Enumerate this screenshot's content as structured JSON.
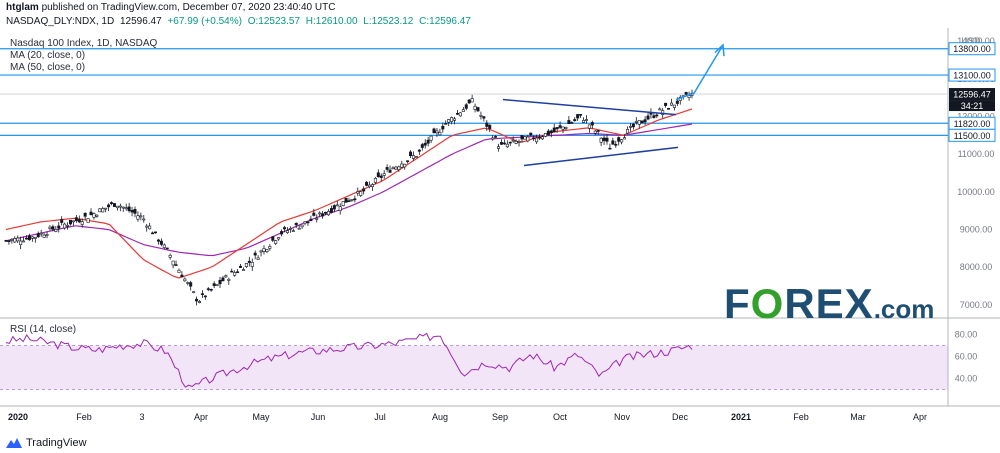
{
  "header": {
    "publisher": "htglam",
    "published_text": "published on TradingView.com, December 07, 2020 23:40:40 UTC",
    "symbol": "NASDAQ_DLY:NDX, 1D",
    "price": "12596.47",
    "change": "+67.99 (+0.54%)",
    "o": "O:12523.57",
    "h": "H:12610.00",
    "l": "L:12523.12",
    "c": "C:12596.47"
  },
  "legend": {
    "title": "Nasdaq 100 Index, 1D, NASDAQ",
    "ma20": "MA (20, close, 0)",
    "ma50": "MA (50, close, 0)",
    "rsi": "RSI (14, close)"
  },
  "brand": {
    "tradingview": "TradingView"
  },
  "watermark": {
    "word": "FOREX",
    "suffix": ".com",
    "o_letter": "O"
  },
  "colors": {
    "candle": "#131722",
    "ma20": "#e53935",
    "ma50": "#9c27b0",
    "hline": "#2196f3",
    "trend": "#1e3fa0",
    "rsi": "#9c27b0",
    "rsi_fill": "#f3e5f8",
    "forex_blue": "#1e4f73",
    "forex_green": "#33a02c"
  },
  "chart_data": [
    {
      "type": "candlestick",
      "title": "Nasdaq 100 Index, 1D, NASDAQ",
      "currency": "USD",
      "x_ticks": [
        "2020",
        "Feb",
        "3",
        "Apr",
        "May",
        "Jun",
        "Jul",
        "Aug",
        "Sep",
        "Oct",
        "Nov",
        "Dec",
        "2021",
        "Feb",
        "Mar",
        "Apr"
      ],
      "y_ticks": [
        7000,
        8000,
        9000,
        10000,
        11000,
        12000,
        13000,
        14000
      ],
      "ylim": [
        6650,
        14350
      ],
      "horizontal_levels": [
        13800.0,
        13100.0,
        11820.0,
        11500.0
      ],
      "last_price_label": "12596.47",
      "countdown_label": "34:21",
      "series": [
        {
          "name": "MA (20, close, 0)",
          "values": [
            9000,
            9200,
            9300,
            9150,
            8200,
            7700,
            8000,
            8600,
            9200,
            9500,
            9900,
            10300,
            10900,
            11500,
            11700,
            11300,
            11600,
            11700,
            11500,
            11900,
            12200
          ]
        },
        {
          "name": "MA (50, close, 0)",
          "values": [
            8700,
            8900,
            9100,
            9000,
            8600,
            8400,
            8300,
            8500,
            8900,
            9300,
            9600,
            10000,
            10500,
            11000,
            11400,
            11450,
            11500,
            11550,
            11500,
            11650,
            11800
          ]
        }
      ],
      "close_path": [
        8700,
        8800,
        9100,
        9350,
        9700,
        9300,
        8300,
        7100,
        7700,
        8200,
        8900,
        9200,
        9600,
        10000,
        10600,
        11000,
        11800,
        12400,
        11200,
        11400,
        11600,
        12000,
        11200,
        11800,
        12200,
        12596
      ]
    },
    {
      "type": "line",
      "title": "RSI (14, close)",
      "y_ticks": [
        40,
        60,
        80
      ],
      "band": [
        30,
        70
      ],
      "values": [
        74,
        76,
        72,
        68,
        66,
        70,
        72,
        65,
        30,
        40,
        48,
        55,
        60,
        64,
        66,
        68,
        70,
        72,
        76,
        80,
        45,
        55,
        50,
        62,
        50,
        62,
        42,
        58,
        62,
        65,
        70
      ]
    }
  ]
}
